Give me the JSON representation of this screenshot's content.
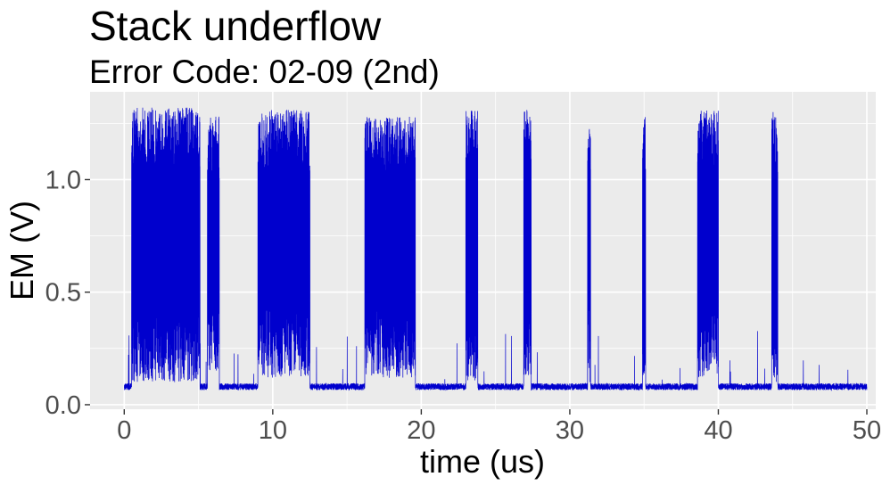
{
  "chart_data": {
    "type": "line",
    "title": "Stack underflow",
    "subtitle": "Error Code: 02-09 (2nd)",
    "xlabel": "time (us)",
    "ylabel": "EM (V)",
    "xlim": [
      -2.3,
      50.6
    ],
    "ylim": [
      -0.02,
      1.39
    ],
    "x_ticks": [
      0,
      10,
      20,
      30,
      40,
      50
    ],
    "x_tick_labels": [
      "0",
      "10",
      "20",
      "30",
      "40",
      "50"
    ],
    "y_ticks": [
      0.0,
      0.5,
      1.0
    ],
    "y_tick_labels": [
      "0.0",
      "0.5",
      "1.0"
    ],
    "grid": true,
    "panel_background": "#ebebeb",
    "grid_color": "#ffffff",
    "series": [
      {
        "color": "#0000cd",
        "baseline": 0.08,
        "x_range": [
          0,
          50
        ],
        "bursts": [
          {
            "start": 0.5,
            "end": 5.1,
            "min": 0.1,
            "max": 1.32
          },
          {
            "start": 5.6,
            "end": 6.4,
            "min": 0.15,
            "max": 1.28
          },
          {
            "start": 9.0,
            "end": 12.5,
            "min": 0.12,
            "max": 1.31
          },
          {
            "start": 16.2,
            "end": 19.6,
            "min": 0.12,
            "max": 1.28
          },
          {
            "start": 23.0,
            "end": 23.8,
            "min": 0.1,
            "max": 1.31
          },
          {
            "start": 26.9,
            "end": 27.4,
            "min": 0.1,
            "max": 1.31
          },
          {
            "start": 31.2,
            "end": 31.4,
            "min": 0.1,
            "max": 1.25
          },
          {
            "start": 34.9,
            "end": 35.1,
            "min": 0.1,
            "max": 1.29
          },
          {
            "start": 38.6,
            "end": 40.0,
            "min": 0.12,
            "max": 1.31
          },
          {
            "start": 43.6,
            "end": 44.0,
            "min": 0.1,
            "max": 1.31
          }
        ]
      }
    ]
  }
}
